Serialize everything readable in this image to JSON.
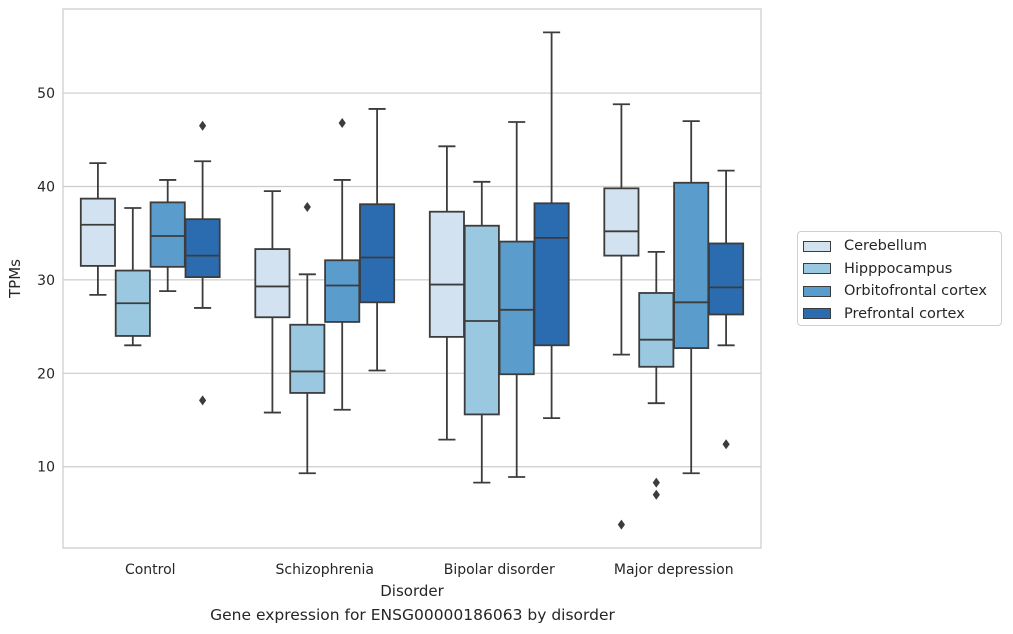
{
  "caption": "Gene expression for ENSG00000186063 by disorder",
  "chart_data": {
    "type": "box",
    "xlabel": "Disorder",
    "ylabel": "TPMs",
    "ylim": [
      1.3,
      59
    ],
    "yticks": [
      10,
      20,
      30,
      40,
      50
    ],
    "grid": "horizontal",
    "legend_position": "right",
    "categories": [
      "Control",
      "Schizophrenia",
      "Bipolar disorder",
      "Major depression"
    ],
    "series": [
      {
        "name": "Cerebellum",
        "color": "#d3e2f1",
        "boxes": [
          {
            "whislo": 28.4,
            "q1": 31.5,
            "med": 35.9,
            "q3": 38.7,
            "whishi": 42.5,
            "fliers": []
          },
          {
            "whislo": 15.8,
            "q1": 26.0,
            "med": 29.3,
            "q3": 33.3,
            "whishi": 39.5,
            "fliers": []
          },
          {
            "whislo": 12.9,
            "q1": 23.9,
            "med": 29.5,
            "q3": 37.3,
            "whishi": 44.3,
            "fliers": []
          },
          {
            "whislo": 22.0,
            "q1": 32.6,
            "med": 35.2,
            "q3": 39.8,
            "whishi": 48.8,
            "fliers": [
              3.8
            ]
          }
        ]
      },
      {
        "name": "Hipppocampus",
        "color": "#9ac8e0",
        "boxes": [
          {
            "whislo": 23.0,
            "q1": 24.0,
            "med": 27.5,
            "q3": 31.0,
            "whishi": 37.7,
            "fliers": []
          },
          {
            "whislo": 9.3,
            "q1": 17.9,
            "med": 20.2,
            "q3": 25.2,
            "whishi": 30.6,
            "fliers": [
              37.8
            ]
          },
          {
            "whislo": 8.3,
            "q1": 15.6,
            "med": 25.6,
            "q3": 35.8,
            "whishi": 40.5,
            "fliers": []
          },
          {
            "whislo": 16.8,
            "q1": 20.7,
            "med": 23.6,
            "q3": 28.6,
            "whishi": 33.0,
            "fliers": [
              8.3,
              7.0
            ]
          }
        ]
      },
      {
        "name": "Orbitofrontal cortex",
        "color": "#5a9dcd",
        "boxes": [
          {
            "whislo": 28.8,
            "q1": 31.4,
            "med": 34.7,
            "q3": 38.3,
            "whishi": 40.7,
            "fliers": []
          },
          {
            "whislo": 16.1,
            "q1": 25.5,
            "med": 29.4,
            "q3": 32.1,
            "whishi": 40.7,
            "fliers": [
              46.8
            ]
          },
          {
            "whislo": 8.9,
            "q1": 19.9,
            "med": 26.8,
            "q3": 34.1,
            "whishi": 46.9,
            "fliers": []
          },
          {
            "whislo": 9.3,
            "q1": 22.7,
            "med": 27.6,
            "q3": 40.4,
            "whishi": 47.0,
            "fliers": []
          }
        ]
      },
      {
        "name": "Prefrontal cortex",
        "color": "#2b6cb0",
        "boxes": [
          {
            "whislo": 27.0,
            "q1": 30.3,
            "med": 32.6,
            "q3": 36.5,
            "whishi": 42.7,
            "fliers": [
              46.5,
              17.1
            ]
          },
          {
            "whislo": 20.3,
            "q1": 27.6,
            "med": 32.4,
            "q3": 38.1,
            "whishi": 48.3,
            "fliers": []
          },
          {
            "whislo": 15.2,
            "q1": 23.0,
            "med": 34.5,
            "q3": 38.2,
            "whishi": 56.5,
            "fliers": []
          },
          {
            "whislo": 23.0,
            "q1": 26.3,
            "med": 29.2,
            "q3": 33.9,
            "whishi": 41.7,
            "fliers": [
              12.4
            ]
          }
        ]
      }
    ]
  }
}
